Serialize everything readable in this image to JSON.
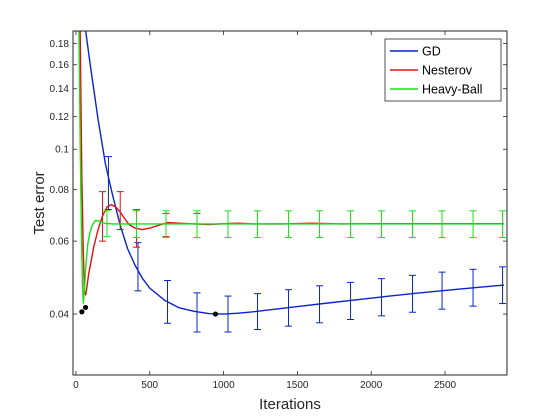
{
  "chart_data": {
    "type": "line",
    "xlabel": "Iterations",
    "ylabel": "Test error",
    "xlim": [
      -20,
      2920
    ],
    "ylim": [
      0.0285,
      0.193
    ],
    "y_scale": "log",
    "x_ticks": [
      0,
      500,
      1000,
      1500,
      2000,
      2500
    ],
    "x_tick_labels": [
      "0",
      "500",
      "1000",
      "1500",
      "2000",
      "2500"
    ],
    "y_ticks": [
      0.04,
      0.06,
      0.08,
      0.1,
      0.12,
      0.14,
      0.16,
      0.18
    ],
    "y_tick_labels": [
      "0.04",
      "0.06",
      "0.08",
      "0.1",
      "0.12",
      "0.14",
      "0.16",
      "0.18"
    ],
    "grid": false,
    "legend_position": "top-right",
    "series": [
      {
        "name": "GD",
        "color": "#0a24c8",
        "points": [
          [
            60,
            0.2
          ],
          [
            100,
            0.157
          ],
          [
            150,
            0.118
          ],
          [
            200,
            0.092
          ],
          [
            250,
            0.077
          ],
          [
            300,
            0.0655
          ],
          [
            350,
            0.0575
          ],
          [
            400,
            0.0525
          ],
          [
            450,
            0.0488
          ],
          [
            500,
            0.0462
          ],
          [
            600,
            0.0432
          ],
          [
            700,
            0.0414
          ],
          [
            800,
            0.0406
          ],
          [
            900,
            0.0401
          ],
          [
            1000,
            0.04
          ],
          [
            1100,
            0.0402
          ],
          [
            1200,
            0.0405
          ],
          [
            1300,
            0.0409
          ],
          [
            1400,
            0.0413
          ],
          [
            1500,
            0.0417
          ],
          [
            1700,
            0.0425
          ],
          [
            1900,
            0.0433
          ],
          [
            2100,
            0.0441
          ],
          [
            2300,
            0.0449
          ],
          [
            2500,
            0.0456
          ],
          [
            2700,
            0.0463
          ],
          [
            2900,
            0.047
          ]
        ],
        "error_bars": [
          {
            "x": 220,
            "y": 0.0825,
            "lo": 0.0715,
            "hi": 0.096
          },
          {
            "x": 420,
            "y": 0.052,
            "lo": 0.0455,
            "hi": 0.0595
          },
          {
            "x": 620,
            "y": 0.0428,
            "lo": 0.038,
            "hi": 0.0482
          },
          {
            "x": 820,
            "y": 0.0403,
            "lo": 0.0362,
            "hi": 0.045
          },
          {
            "x": 1030,
            "y": 0.04,
            "lo": 0.0362,
            "hi": 0.0442
          },
          {
            "x": 1230,
            "y": 0.0405,
            "lo": 0.0367,
            "hi": 0.0448
          },
          {
            "x": 1440,
            "y": 0.0414,
            "lo": 0.0374,
            "hi": 0.0458
          },
          {
            "x": 1650,
            "y": 0.0422,
            "lo": 0.0381,
            "hi": 0.0468
          },
          {
            "x": 1860,
            "y": 0.043,
            "lo": 0.0388,
            "hi": 0.0477
          },
          {
            "x": 2070,
            "y": 0.0439,
            "lo": 0.0396,
            "hi": 0.0487
          },
          {
            "x": 2280,
            "y": 0.0447,
            "lo": 0.0404,
            "hi": 0.0496
          },
          {
            "x": 2480,
            "y": 0.0455,
            "lo": 0.0411,
            "hi": 0.0505
          },
          {
            "x": 2690,
            "y": 0.0462,
            "lo": 0.0418,
            "hi": 0.0513
          },
          {
            "x": 2890,
            "y": 0.0469,
            "lo": 0.0424,
            "hi": 0.052
          }
        ],
        "marker": {
          "x": 945,
          "y": 0.04
        }
      },
      {
        "name": "Nesterov",
        "color": "#e01010",
        "points": [
          [
            28,
            0.2
          ],
          [
            40,
            0.085
          ],
          [
            50,
            0.056
          ],
          [
            58,
            0.045
          ],
          [
            66,
            0.0445
          ],
          [
            76,
            0.047
          ],
          [
            86,
            0.05
          ],
          [
            100,
            0.053
          ],
          [
            120,
            0.058
          ],
          [
            150,
            0.064
          ],
          [
            180,
            0.069
          ],
          [
            210,
            0.0725
          ],
          [
            240,
            0.0735
          ],
          [
            270,
            0.0725
          ],
          [
            300,
            0.0705
          ],
          [
            330,
            0.068
          ],
          [
            360,
            0.0658
          ],
          [
            400,
            0.0645
          ],
          [
            450,
            0.064
          ],
          [
            500,
            0.0645
          ],
          [
            560,
            0.0655
          ],
          [
            620,
            0.0665
          ],
          [
            700,
            0.0663
          ],
          [
            800,
            0.066
          ],
          [
            900,
            0.0658
          ],
          [
            1000,
            0.0661
          ],
          [
            1100,
            0.0663
          ],
          [
            1200,
            0.066
          ],
          [
            1400,
            0.066
          ],
          [
            1600,
            0.0663
          ],
          [
            1800,
            0.066
          ],
          [
            2000,
            0.0661
          ],
          [
            2400,
            0.0661
          ],
          [
            2900,
            0.0661
          ]
        ],
        "error_bars": [
          {
            "x": 180,
            "y": 0.069,
            "lo": 0.06,
            "hi": 0.079
          },
          {
            "x": 300,
            "y": 0.0705,
            "lo": 0.064,
            "hi": 0.079
          },
          {
            "x": 410,
            "y": 0.0645,
            "lo": 0.058,
            "hi": 0.0715
          },
          {
            "x": 610,
            "y": 0.0662,
            "lo": 0.0615,
            "hi": 0.07
          },
          {
            "x": 820,
            "y": 0.066,
            "lo": 0.0612,
            "hi": 0.07
          }
        ],
        "marker": {
          "x": 65,
          "y": 0.0415
        }
      },
      {
        "name": "Heavy-Ball",
        "color": "#19e019",
        "points": [
          [
            20,
            0.2
          ],
          [
            30,
            0.095
          ],
          [
            38,
            0.06
          ],
          [
            44,
            0.047
          ],
          [
            50,
            0.0425
          ],
          [
            58,
            0.046
          ],
          [
            68,
            0.053
          ],
          [
            80,
            0.059
          ],
          [
            95,
            0.063
          ],
          [
            110,
            0.0655
          ],
          [
            130,
            0.0672
          ],
          [
            150,
            0.0672
          ],
          [
            175,
            0.0665
          ],
          [
            200,
            0.0662
          ],
          [
            250,
            0.066
          ],
          [
            300,
            0.066
          ],
          [
            400,
            0.066
          ],
          [
            500,
            0.066
          ],
          [
            700,
            0.066
          ],
          [
            1000,
            0.066
          ],
          [
            1500,
            0.066
          ],
          [
            2000,
            0.066
          ],
          [
            2500,
            0.066
          ],
          [
            2900,
            0.066
          ]
        ],
        "error_bars": [
          {
            "x": 210,
            "y": 0.066,
            "lo": 0.0615,
            "hi": 0.071
          },
          {
            "x": 410,
            "y": 0.066,
            "lo": 0.0612,
            "hi": 0.071
          },
          {
            "x": 610,
            "y": 0.066,
            "lo": 0.0612,
            "hi": 0.071
          },
          {
            "x": 820,
            "y": 0.066,
            "lo": 0.0612,
            "hi": 0.071
          },
          {
            "x": 1030,
            "y": 0.066,
            "lo": 0.0612,
            "hi": 0.071
          },
          {
            "x": 1230,
            "y": 0.066,
            "lo": 0.0612,
            "hi": 0.071
          },
          {
            "x": 1440,
            "y": 0.066,
            "lo": 0.0612,
            "hi": 0.071
          },
          {
            "x": 1650,
            "y": 0.066,
            "lo": 0.0612,
            "hi": 0.071
          },
          {
            "x": 1860,
            "y": 0.066,
            "lo": 0.0612,
            "hi": 0.071
          },
          {
            "x": 2070,
            "y": 0.066,
            "lo": 0.0612,
            "hi": 0.071
          },
          {
            "x": 2280,
            "y": 0.066,
            "lo": 0.0612,
            "hi": 0.071
          },
          {
            "x": 2480,
            "y": 0.066,
            "lo": 0.0612,
            "hi": 0.071
          },
          {
            "x": 2690,
            "y": 0.066,
            "lo": 0.0612,
            "hi": 0.071
          },
          {
            "x": 2890,
            "y": 0.066,
            "lo": 0.0612,
            "hi": 0.071
          }
        ],
        "marker": {
          "x": 40,
          "y": 0.0405
        }
      }
    ]
  }
}
